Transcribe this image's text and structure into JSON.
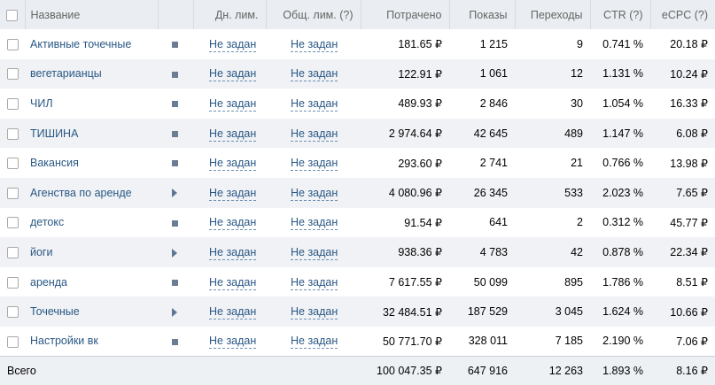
{
  "header": {
    "name": "Название",
    "day_limit": "Дн. лим.",
    "total_limit": "Общ. лим. (?)",
    "spent": "Потрачено",
    "impressions": "Показы",
    "clicks": "Переходы",
    "ctr": "CTR (?)",
    "ecpc": "eCPC (?)"
  },
  "rows": [
    {
      "name": "Активные точечные",
      "status_icon": "stop-icon",
      "day_limit": "Не задан",
      "total_limit": "Не задан",
      "spent": "181.65 ₽",
      "impressions": "1 215",
      "clicks": "9",
      "ctr": "0.741 %",
      "ecpc": "20.18 ₽"
    },
    {
      "name": "вегетарианцы",
      "status_icon": "stop-icon",
      "day_limit": "Не задан",
      "total_limit": "Не задан",
      "spent": "122.91 ₽",
      "impressions": "1 061",
      "clicks": "12",
      "ctr": "1.131 %",
      "ecpc": "10.24 ₽"
    },
    {
      "name": "ЧИЛ",
      "status_icon": "stop-icon",
      "day_limit": "Не задан",
      "total_limit": "Не задан",
      "spent": "489.93 ₽",
      "impressions": "2 846",
      "clicks": "30",
      "ctr": "1.054 %",
      "ecpc": "16.33 ₽"
    },
    {
      "name": "ТИШИНА",
      "status_icon": "stop-icon",
      "day_limit": "Не задан",
      "total_limit": "Не задан",
      "spent": "2 974.64 ₽",
      "impressions": "42 645",
      "clicks": "489",
      "ctr": "1.147 %",
      "ecpc": "6.08 ₽"
    },
    {
      "name": "Вакансия",
      "status_icon": "stop-icon",
      "day_limit": "Не задан",
      "total_limit": "Не задан",
      "spent": "293.60 ₽",
      "impressions": "2 741",
      "clicks": "21",
      "ctr": "0.766 %",
      "ecpc": "13.98 ₽"
    },
    {
      "name": "Агенства по аренде",
      "status_icon": "play-icon",
      "day_limit": "Не задан",
      "total_limit": "Не задан",
      "spent": "4 080.96 ₽",
      "impressions": "26 345",
      "clicks": "533",
      "ctr": "2.023 %",
      "ecpc": "7.65 ₽"
    },
    {
      "name": "детокс",
      "status_icon": "stop-icon",
      "day_limit": "Не задан",
      "total_limit": "Не задан",
      "spent": "91.54 ₽",
      "impressions": "641",
      "clicks": "2",
      "ctr": "0.312 %",
      "ecpc": "45.77 ₽"
    },
    {
      "name": "йоги",
      "status_icon": "play-icon",
      "day_limit": "Не задан",
      "total_limit": "Не задан",
      "spent": "938.36 ₽",
      "impressions": "4 783",
      "clicks": "42",
      "ctr": "0.878 %",
      "ecpc": "22.34 ₽"
    },
    {
      "name": "аренда",
      "status_icon": "stop-icon",
      "day_limit": "Не задан",
      "total_limit": "Не задан",
      "spent": "7 617.55 ₽",
      "impressions": "50 099",
      "clicks": "895",
      "ctr": "1.786 %",
      "ecpc": "8.51 ₽"
    },
    {
      "name": "Точечные",
      "status_icon": "play-icon",
      "day_limit": "Не задан",
      "total_limit": "Не задан",
      "spent": "32 484.51 ₽",
      "impressions": "187 529",
      "clicks": "3 045",
      "ctr": "1.624 %",
      "ecpc": "10.66 ₽"
    },
    {
      "name": "Настройки вк",
      "status_icon": "stop-icon",
      "day_limit": "Не задан",
      "total_limit": "Не задан",
      "spent": "50 771.70 ₽",
      "impressions": "328 011",
      "clicks": "7 185",
      "ctr": "2.190 %",
      "ecpc": "7.06 ₽"
    }
  ],
  "total": {
    "label": "Всего",
    "spent": "100 047.35 ₽",
    "impressions": "647 916",
    "clicks": "12 263",
    "ctr": "1.893 %",
    "ecpc": "8.16 ₽"
  }
}
